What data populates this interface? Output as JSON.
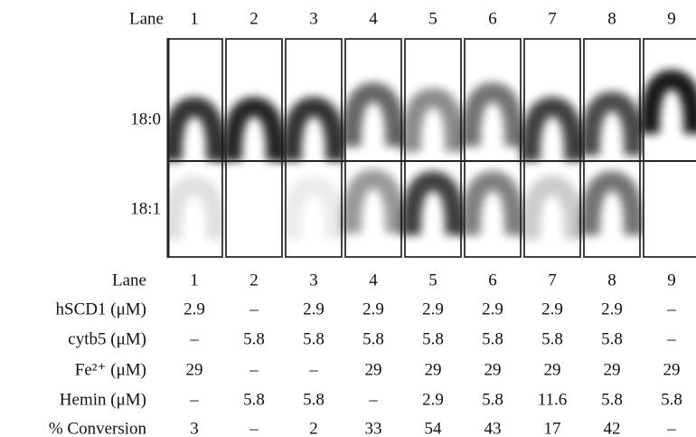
{
  "header": {
    "label": "Lane",
    "lanes": [
      "1",
      "2",
      "3",
      "4",
      "5",
      "6",
      "7",
      "8",
      "9"
    ]
  },
  "gel": {
    "rows": [
      "18:0",
      "18:1"
    ]
  },
  "table": {
    "rows": [
      {
        "label": "Lane",
        "cells": [
          "1",
          "2",
          "3",
          "4",
          "5",
          "6",
          "7",
          "8",
          "9"
        ]
      },
      {
        "label": "hSCD1 (μM)",
        "cells": [
          "2.9",
          "–",
          "2.9",
          "2.9",
          "2.9",
          "2.9",
          "2.9",
          "2.9",
          "–"
        ]
      },
      {
        "label": "cytb5 (μM)",
        "cells": [
          "–",
          "5.8",
          "5.8",
          "5.8",
          "5.8",
          "5.8",
          "5.8",
          "5.8",
          "–"
        ]
      },
      {
        "label": "Fe²⁺ (μM)",
        "cells": [
          "29",
          "–",
          "–",
          "29",
          "29",
          "29",
          "29",
          "29",
          "29"
        ]
      },
      {
        "label": "Hemin (μM)",
        "cells": [
          "–",
          "5.8",
          "5.8",
          "–",
          "2.9",
          "5.8",
          "11.6",
          "5.8",
          "5.8"
        ]
      },
      {
        "label": "% Conversion",
        "cells": [
          "3",
          "–",
          "2",
          "33",
          "54",
          "43",
          "17",
          "42",
          "–"
        ]
      }
    ]
  }
}
